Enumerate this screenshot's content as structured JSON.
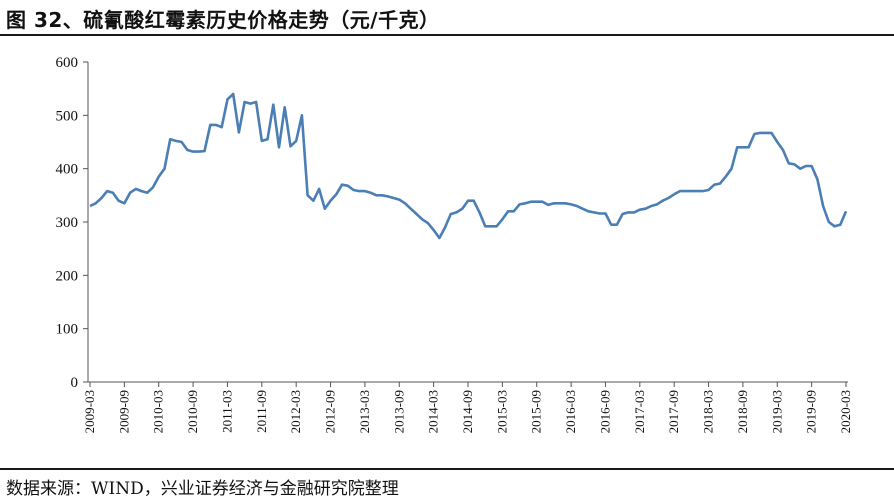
{
  "title": "图 32、硫氰酸红霉素历史价格走势（元/千克）",
  "source": "数据来源：WIND，兴业证券经济与金融研究院整理",
  "colors": {
    "line": "#4a7eb5",
    "axis": "#555555"
  },
  "chart_data": {
    "type": "line",
    "title": "",
    "xlabel": "",
    "ylabel": "",
    "ylim": [
      0,
      600
    ],
    "yticks": [
      0,
      100,
      200,
      300,
      400,
      500,
      600
    ],
    "x_range": [
      "2009-03",
      "2020-03"
    ],
    "xticks": [
      "2009-03",
      "2009-09",
      "2010-03",
      "2010-09",
      "2011-03",
      "2011-09",
      "2012-03",
      "2012-09",
      "2013-03",
      "2013-09",
      "2014-03",
      "2014-09",
      "2015-03",
      "2015-09",
      "2016-03",
      "2016-09",
      "2017-03",
      "2017-09",
      "2018-03",
      "2018-09",
      "2019-03",
      "2019-09",
      "2020-03"
    ],
    "grid": false,
    "legend": "none",
    "series": [
      {
        "points": [
          [
            "2009-03",
            330
          ],
          [
            "2009-04",
            335
          ],
          [
            "2009-05",
            345
          ],
          [
            "2009-06",
            358
          ],
          [
            "2009-07",
            355
          ],
          [
            "2009-08",
            340
          ],
          [
            "2009-09",
            335
          ],
          [
            "2009-10",
            355
          ],
          [
            "2009-11",
            362
          ],
          [
            "2009-12",
            358
          ],
          [
            "2010-01",
            355
          ],
          [
            "2010-02",
            365
          ],
          [
            "2010-03",
            385
          ],
          [
            "2010-04",
            400
          ],
          [
            "2010-05",
            455
          ],
          [
            "2010-06",
            452
          ],
          [
            "2010-07",
            450
          ],
          [
            "2010-08",
            435
          ],
          [
            "2010-09",
            432
          ],
          [
            "2010-10",
            432
          ],
          [
            "2010-11",
            433
          ],
          [
            "2010-12",
            482
          ],
          [
            "2011-01",
            482
          ],
          [
            "2011-02",
            478
          ],
          [
            "2011-03",
            530
          ],
          [
            "2011-04",
            540
          ],
          [
            "2011-05",
            468
          ],
          [
            "2011-06",
            525
          ],
          [
            "2011-07",
            522
          ],
          [
            "2011-08",
            525
          ],
          [
            "2011-09",
            452
          ],
          [
            "2011-10",
            455
          ],
          [
            "2011-11",
            520
          ],
          [
            "2011-12",
            440
          ],
          [
            "2012-01",
            515
          ],
          [
            "2012-02",
            442
          ],
          [
            "2012-03",
            452
          ],
          [
            "2012-04",
            500
          ],
          [
            "2012-05",
            350
          ],
          [
            "2012-06",
            340
          ],
          [
            "2012-07",
            362
          ],
          [
            "2012-08",
            325
          ],
          [
            "2012-09",
            340
          ],
          [
            "2012-10",
            352
          ],
          [
            "2012-11",
            370
          ],
          [
            "2012-12",
            368
          ],
          [
            "2013-01",
            360
          ],
          [
            "2013-02",
            358
          ],
          [
            "2013-03",
            358
          ],
          [
            "2013-04",
            355
          ],
          [
            "2013-05",
            350
          ],
          [
            "2013-06",
            350
          ],
          [
            "2013-07",
            348
          ],
          [
            "2013-08",
            345
          ],
          [
            "2013-09",
            342
          ],
          [
            "2013-10",
            335
          ],
          [
            "2013-11",
            325
          ],
          [
            "2013-12",
            315
          ],
          [
            "2014-01",
            305
          ],
          [
            "2014-02",
            298
          ],
          [
            "2014-03",
            285
          ],
          [
            "2014-04",
            270
          ],
          [
            "2014-05",
            290
          ],
          [
            "2014-06",
            315
          ],
          [
            "2014-07",
            318
          ],
          [
            "2014-08",
            325
          ],
          [
            "2014-09",
            340
          ],
          [
            "2014-10",
            340
          ],
          [
            "2014-11",
            318
          ],
          [
            "2014-12",
            292
          ],
          [
            "2015-01",
            292
          ],
          [
            "2015-02",
            292
          ],
          [
            "2015-03",
            305
          ],
          [
            "2015-04",
            320
          ],
          [
            "2015-05",
            320
          ],
          [
            "2015-06",
            333
          ],
          [
            "2015-07",
            335
          ],
          [
            "2015-08",
            338
          ],
          [
            "2015-09",
            338
          ],
          [
            "2015-10",
            338
          ],
          [
            "2015-11",
            332
          ],
          [
            "2015-12",
            335
          ],
          [
            "2016-01",
            335
          ],
          [
            "2016-02",
            335
          ],
          [
            "2016-03",
            333
          ],
          [
            "2016-04",
            330
          ],
          [
            "2016-05",
            325
          ],
          [
            "2016-06",
            320
          ],
          [
            "2016-07",
            318
          ],
          [
            "2016-08",
            316
          ],
          [
            "2016-09",
            316
          ],
          [
            "2016-10",
            295
          ],
          [
            "2016-11",
            295
          ],
          [
            "2016-12",
            315
          ],
          [
            "2017-01",
            318
          ],
          [
            "2017-02",
            318
          ],
          [
            "2017-03",
            323
          ],
          [
            "2017-04",
            325
          ],
          [
            "2017-05",
            330
          ],
          [
            "2017-06",
            333
          ],
          [
            "2017-07",
            340
          ],
          [
            "2017-08",
            345
          ],
          [
            "2017-09",
            352
          ],
          [
            "2017-10",
            358
          ],
          [
            "2017-11",
            358
          ],
          [
            "2017-12",
            358
          ],
          [
            "2018-01",
            358
          ],
          [
            "2018-02",
            358
          ],
          [
            "2018-03",
            360
          ],
          [
            "2018-04",
            370
          ],
          [
            "2018-05",
            372
          ],
          [
            "2018-06",
            385
          ],
          [
            "2018-07",
            400
          ],
          [
            "2018-08",
            440
          ],
          [
            "2018-09",
            440
          ],
          [
            "2018-10",
            440
          ],
          [
            "2018-11",
            465
          ],
          [
            "2018-12",
            467
          ],
          [
            "2019-01",
            467
          ],
          [
            "2019-02",
            467
          ],
          [
            "2019-03",
            450
          ],
          [
            "2019-04",
            435
          ],
          [
            "2019-05",
            410
          ],
          [
            "2019-06",
            408
          ],
          [
            "2019-07",
            400
          ],
          [
            "2019-08",
            405
          ],
          [
            "2019-09",
            405
          ],
          [
            "2019-10",
            380
          ],
          [
            "2019-11",
            330
          ],
          [
            "2019-12",
            300
          ],
          [
            "2020-01",
            292
          ],
          [
            "2020-02",
            295
          ],
          [
            "2020-03",
            320
          ]
        ]
      }
    ]
  }
}
